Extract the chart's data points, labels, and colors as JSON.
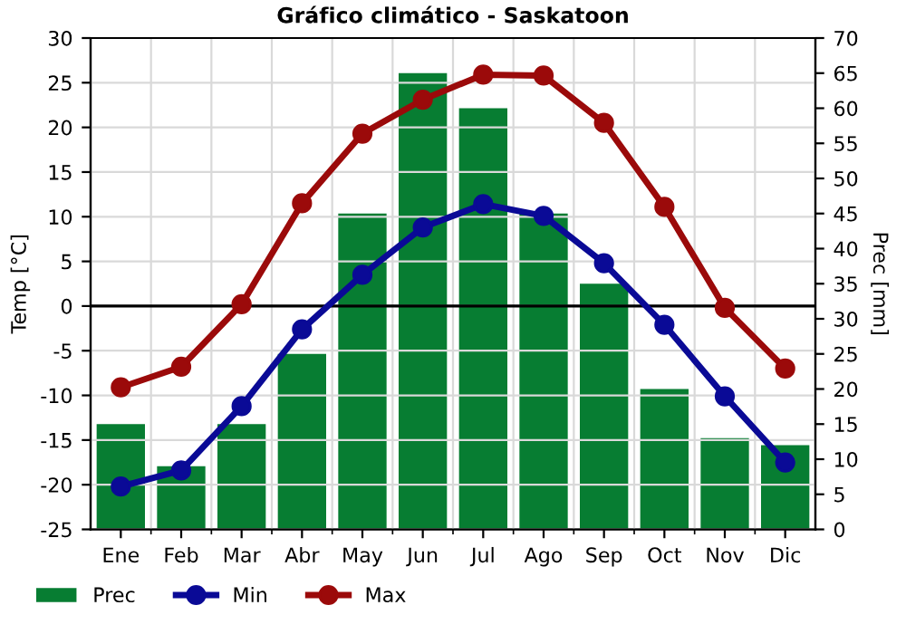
{
  "chart_data": {
    "type": "bar",
    "title": "Gráfico climático - Saskatoon",
    "categories": [
      "Ene",
      "Feb",
      "Mar",
      "Abr",
      "May",
      "Jun",
      "Jul",
      "Ago",
      "Sep",
      "Oct",
      "Nov",
      "Dic"
    ],
    "series": [
      {
        "name": "Prec",
        "axis": "y2",
        "color": "#077d32",
        "values": [
          15,
          9,
          15,
          25,
          45,
          65,
          60,
          45,
          35,
          20,
          13,
          12
        ]
      },
      {
        "name": "Min",
        "type": "line",
        "color": "#0a0a96",
        "marker": "circle",
        "values": [
          -20.2,
          -18.4,
          -11.2,
          -2.6,
          3.5,
          8.8,
          11.4,
          10.1,
          4.8,
          -2.1,
          -10.1,
          -17.5
        ]
      },
      {
        "name": "Max",
        "type": "line",
        "color": "#9b0a0a",
        "marker": "circle",
        "values": [
          -9.1,
          -6.8,
          0.2,
          11.5,
          19.3,
          23.1,
          25.9,
          25.8,
          20.5,
          11.1,
          -0.2,
          -7.0
        ]
      }
    ],
    "ylabel": "Temp [°C]",
    "y2label": "Prec [mm]",
    "ylim": [
      -25,
      30
    ],
    "yticks": [
      -25,
      -20,
      -15,
      -10,
      -5,
      0,
      5,
      10,
      15,
      20,
      25,
      30
    ],
    "y2lim": [
      0,
      70
    ],
    "y2ticks": [
      0,
      5,
      10,
      15,
      20,
      25,
      30,
      35,
      40,
      45,
      50,
      55,
      60,
      65,
      70
    ],
    "ref_lines": [
      {
        "axis": "y",
        "value": 0,
        "color": "#000000"
      }
    ],
    "grid": true,
    "legend": "bottom"
  }
}
